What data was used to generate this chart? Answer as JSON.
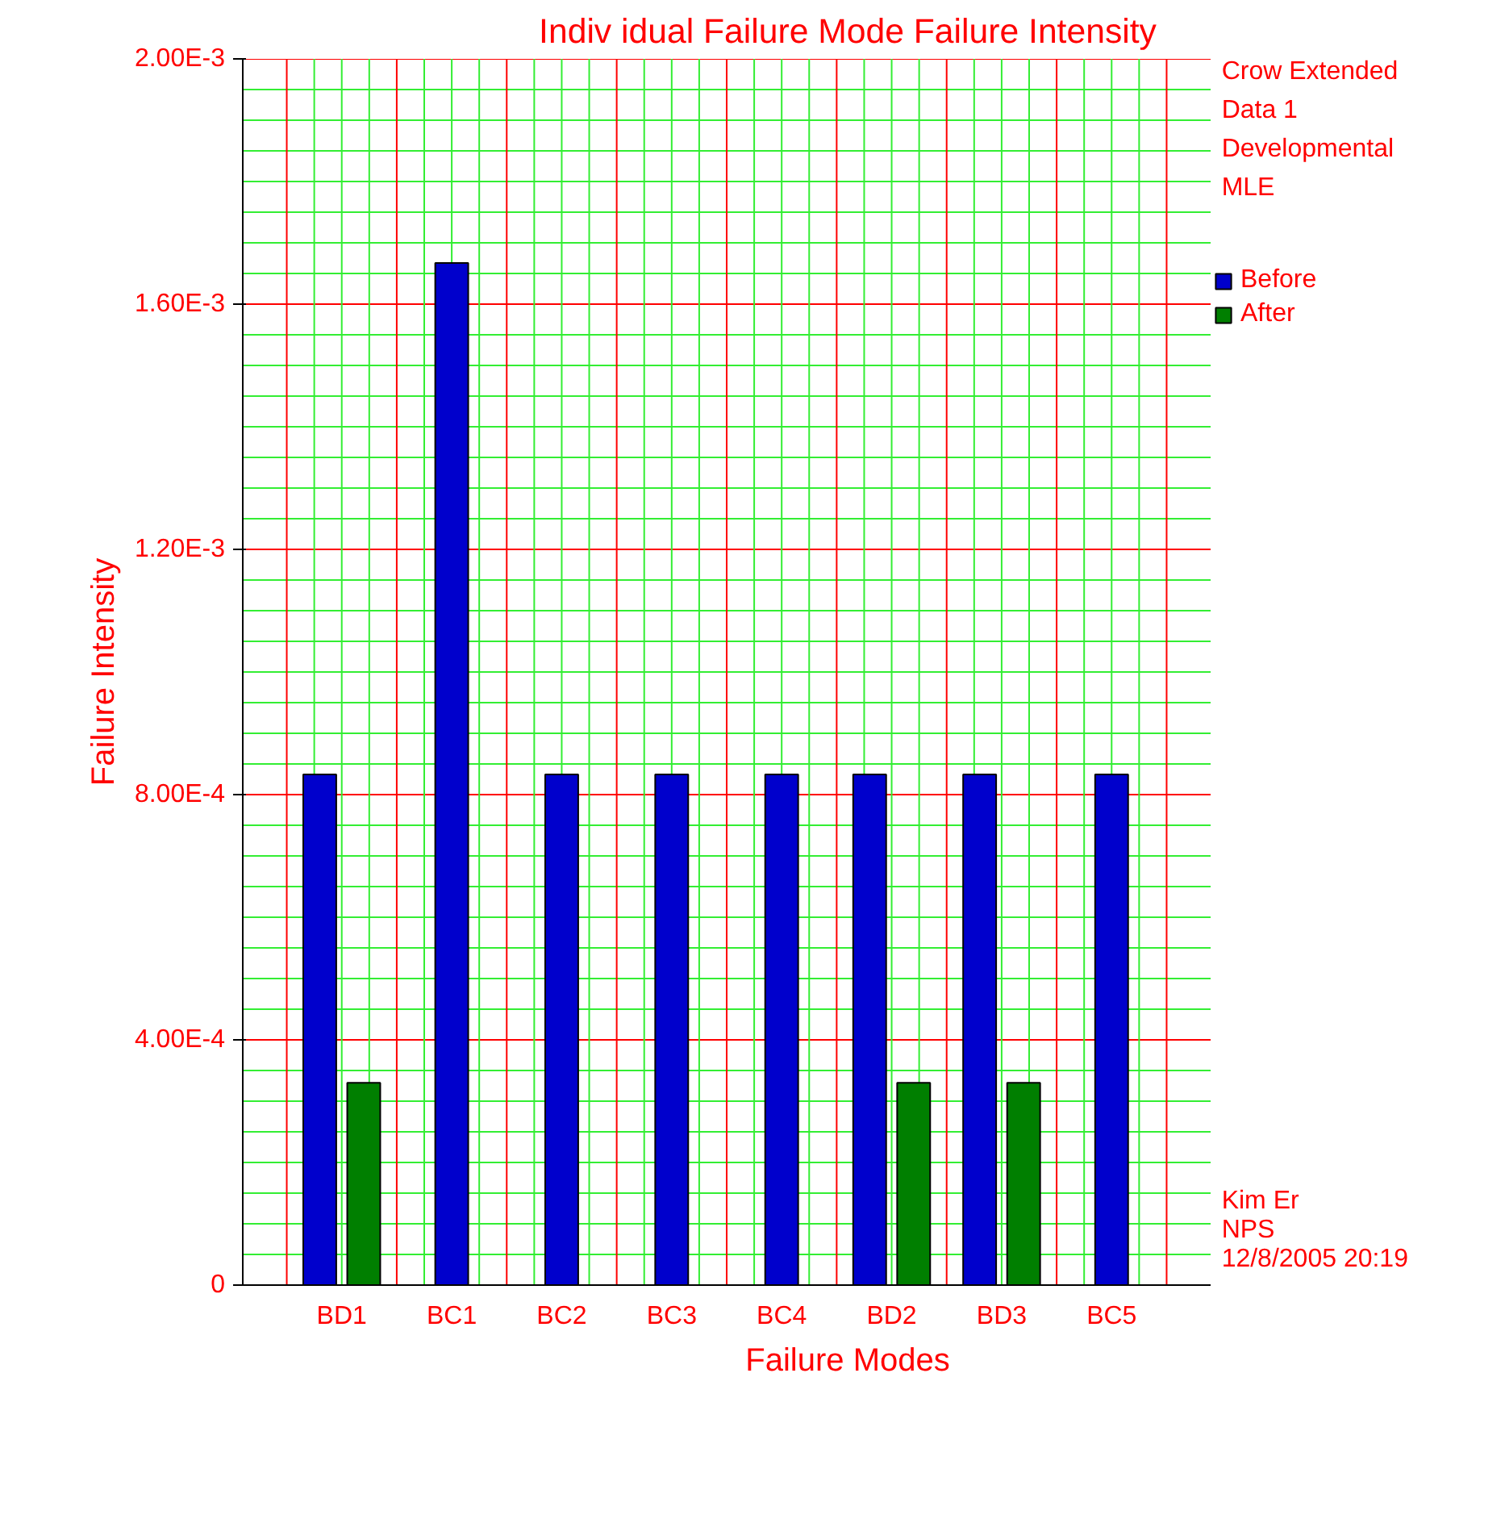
{
  "chart_data": {
    "type": "bar",
    "title": "Indiv idual Failure Mode Failure Intensity",
    "xlabel": "Failure Modes",
    "ylabel": "Failure Intensity",
    "categories": [
      "BD1",
      "BC1",
      "BC2",
      "BC3",
      "BC4",
      "BD2",
      "BD3",
      "BC5"
    ],
    "series": [
      {
        "name": "Before",
        "color": "#0000cc",
        "values": [
          0.000833,
          0.001667,
          0.000833,
          0.000833,
          0.000833,
          0.000833,
          0.000833,
          0.000833
        ]
      },
      {
        "name": "After",
        "color": "#007f00",
        "values": [
          0.00033,
          null,
          null,
          null,
          null,
          0.00033,
          0.00033,
          null
        ]
      }
    ],
    "ylim": [
      0,
      0.002
    ],
    "yticks": [
      {
        "value": 0,
        "label": "0"
      },
      {
        "value": 0.0004,
        "label": "4.00E-4"
      },
      {
        "value": 0.0008,
        "label": "8.00E-4"
      },
      {
        "value": 0.0012,
        "label": "1.20E-3"
      },
      {
        "value": 0.0016,
        "label": "1.60E-3"
      },
      {
        "value": 0.002,
        "label": "2.00E-3"
      }
    ],
    "grid": true,
    "legend": "right",
    "legend_title": "Crow Extended",
    "annotations": [
      "Data 1",
      "Developmental",
      "MLE",
      "Kim Er",
      "NPS",
      "12/8/2005 20:19"
    ]
  }
}
